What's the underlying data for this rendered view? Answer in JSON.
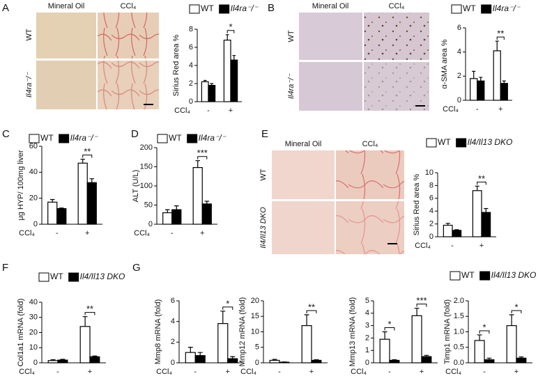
{
  "panel_labels": [
    "A",
    "B",
    "C",
    "D",
    "E",
    "F",
    "G"
  ],
  "image_panels": [
    {
      "columns": [
        "Mineral Oil",
        "CCl₄"
      ],
      "rows": [
        "WT",
        "Il4ra⁻/⁻"
      ]
    },
    {
      "columns": [
        "Mineral Oil",
        "CCl₄"
      ],
      "rows": [
        "WT",
        "Il4ra⁻/⁻"
      ]
    },
    {
      "columns": [
        "Mineral Oil",
        "CCl₄"
      ],
      "rows": [
        "WT",
        "Il4/Il13 DKO"
      ]
    }
  ],
  "chart_data": [
    {
      "type": "bar",
      "ylabel": "Sirius Red area %",
      "xlabel": "CCl₄",
      "categories": [
        "-",
        "+"
      ],
      "ylim": [
        0,
        8
      ],
      "yticks": [
        0,
        2,
        4,
        6,
        8
      ],
      "legend": true,
      "significance": [
        null,
        "*"
      ],
      "series": [
        {
          "name": "WT",
          "color": "#ffffff",
          "values": [
            2.2,
            6.8
          ],
          "errors": [
            0.15,
            0.6
          ]
        },
        {
          "name": "Il4ra⁻/⁻",
          "color": "#000000",
          "values": [
            1.8,
            4.6
          ],
          "errors": [
            0.2,
            0.5
          ]
        }
      ]
    },
    {
      "type": "bar",
      "ylabel": "α-SMA area %",
      "xlabel": "CCl₄",
      "categories": [
        "-",
        "+"
      ],
      "ylim": [
        0,
        6
      ],
      "yticks": [
        0,
        2,
        4,
        6
      ],
      "legend": true,
      "significance": [
        null,
        "**"
      ],
      "series": [
        {
          "name": "WT",
          "color": "#ffffff",
          "values": [
            1.8,
            4.1
          ],
          "errors": [
            0.6,
            0.8
          ]
        },
        {
          "name": "Il4ra⁻/⁻",
          "color": "#000000",
          "values": [
            1.6,
            1.4
          ],
          "errors": [
            0.3,
            0.2
          ]
        }
      ]
    },
    {
      "type": "bar",
      "ylabel": "μg HYP/ 100mg liver",
      "xlabel": "CCl₄",
      "categories": [
        "-",
        "+"
      ],
      "ylim": [
        0,
        60
      ],
      "yticks": [
        0,
        20,
        40,
        60
      ],
      "legend": true,
      "significance": [
        null,
        "**"
      ],
      "series": [
        {
          "name": "WT",
          "color": "#ffffff",
          "values": [
            17,
            47
          ],
          "errors": [
            2,
            3
          ]
        },
        {
          "name": "Il4ra⁻/⁻",
          "color": "#000000",
          "values": [
            12,
            32
          ],
          "errors": [
            0.5,
            3
          ]
        }
      ]
    },
    {
      "type": "bar",
      "ylabel": "ALT (U/L)",
      "xlabel": "CCl₄",
      "categories": [
        "-",
        "+"
      ],
      "ylim": [
        0,
        200
      ],
      "yticks": [
        0,
        50,
        100,
        150,
        200
      ],
      "legend": true,
      "significance": [
        null,
        "***"
      ],
      "series": [
        {
          "name": "WT",
          "color": "#ffffff",
          "values": [
            30,
            148
          ],
          "errors": [
            8,
            18
          ]
        },
        {
          "name": "Il4ra⁻/⁻",
          "color": "#000000",
          "values": [
            38,
            53
          ],
          "errors": [
            10,
            7
          ]
        }
      ]
    },
    {
      "type": "bar",
      "ylabel": "Sirius Red area %",
      "xlabel": "CCl₄",
      "categories": [
        "-",
        "+"
      ],
      "ylim": [
        0,
        10
      ],
      "yticks": [
        0,
        2,
        4,
        6,
        8,
        10
      ],
      "legend": true,
      "significance": [
        null,
        "**"
      ],
      "series": [
        {
          "name": "WT",
          "color": "#ffffff",
          "values": [
            1.8,
            7.2
          ],
          "errors": [
            0.3,
            0.7
          ]
        },
        {
          "name": "Il4/Il13 DKO",
          "color": "#000000",
          "values": [
            1.0,
            3.8
          ],
          "errors": [
            0.1,
            0.6
          ]
        }
      ]
    },
    {
      "type": "bar",
      "ylabel": "Col1a1 mRNA (fold)",
      "xlabel": "CCl₄",
      "categories": [
        "-",
        "+"
      ],
      "ylim": [
        0,
        40
      ],
      "yticks": [
        0,
        10,
        20,
        30,
        40
      ],
      "legend": true,
      "significance": [
        null,
        "**"
      ],
      "series": [
        {
          "name": "WT",
          "color": "#ffffff",
          "values": [
            1.5,
            24
          ],
          "errors": [
            0.5,
            6.5
          ]
        },
        {
          "name": "Il4/Il13 DKO",
          "color": "#000000",
          "values": [
            1.8,
            4
          ],
          "errors": [
            0.5,
            0.5
          ]
        }
      ]
    },
    {
      "type": "bar",
      "ylabel": "Mmp8 mRNA (fold)",
      "xlabel": "CCl₄",
      "categories": [
        "-",
        "+"
      ],
      "ylim": [
        0,
        6
      ],
      "yticks": [
        0,
        2,
        4,
        6
      ],
      "legend": false,
      "significance": [
        null,
        "*"
      ],
      "series": [
        {
          "name": "WT",
          "color": "#ffffff",
          "values": [
            1.0,
            3.8
          ],
          "errors": [
            0.5,
            1.2
          ]
        },
        {
          "name": "Il4/Il13 DKO",
          "color": "#000000",
          "values": [
            0.7,
            0.4
          ],
          "errors": [
            0.3,
            0.2
          ]
        }
      ]
    },
    {
      "type": "bar",
      "ylabel": "Mmp12 mRNA (fold)",
      "xlabel": "CCl₄",
      "categories": [
        "-",
        "+"
      ],
      "ylim": [
        0,
        20
      ],
      "yticks": [
        0,
        5,
        10,
        15,
        20
      ],
      "legend": false,
      "significance": [
        null,
        "**"
      ],
      "series": [
        {
          "name": "WT",
          "color": "#ffffff",
          "values": [
            0.8,
            12
          ],
          "errors": [
            0.3,
            3.5
          ]
        },
        {
          "name": "Il4/Il13 DKO",
          "color": "#000000",
          "values": [
            0.2,
            0.8
          ],
          "errors": [
            0.1,
            0.2
          ]
        }
      ]
    },
    {
      "type": "bar",
      "ylabel": "Mmp13 mRNA (fold)",
      "xlabel": "CCl₄",
      "categories": [
        "-",
        "+"
      ],
      "ylim": [
        0,
        5
      ],
      "yticks": [
        0,
        1,
        2,
        3,
        4,
        5
      ],
      "legend": false,
      "significance": [
        "*",
        "***"
      ],
      "series": [
        {
          "name": "WT",
          "color": "#ffffff",
          "values": [
            1.9,
            3.8
          ],
          "errors": [
            0.6,
            0.6
          ]
        },
        {
          "name": "Il4/Il13 DKO",
          "color": "#000000",
          "values": [
            0.2,
            0.5
          ],
          "errors": [
            0.05,
            0.1
          ]
        }
      ]
    },
    {
      "type": "bar",
      "ylabel": "Timp1 mRNA (fold)",
      "xlabel": "CCl₄",
      "categories": [
        "-",
        "+"
      ],
      "ylim": [
        0,
        2
      ],
      "yticks": [
        {
          "value": 0,
          "label": "0.0"
        },
        0.5,
        {
          "value": 1,
          "label": "1.0"
        },
        1.5,
        {
          "value": 2,
          "label": "2.0"
        }
      ],
      "legend": true,
      "significance": [
        "*",
        "*"
      ],
      "series": [
        {
          "name": "WT",
          "color": "#ffffff",
          "values": [
            0.72,
            1.2
          ],
          "errors": [
            0.18,
            0.35
          ]
        },
        {
          "name": "Il4/Il13 DKO",
          "color": "#000000",
          "values": [
            0.1,
            0.15
          ],
          "errors": [
            0.05,
            0.04
          ]
        }
      ]
    }
  ]
}
